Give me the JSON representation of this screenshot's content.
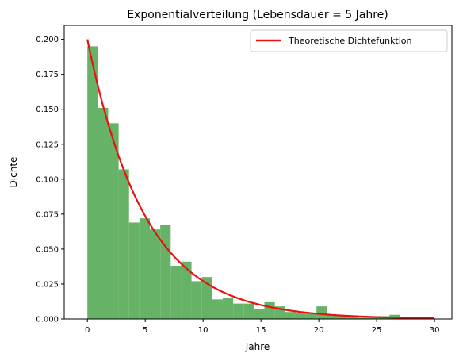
{
  "chart_data": {
    "type": "bar",
    "title": "Exponentialverteilung (Lebensdauer = 5 Jahre)",
    "xlabel": "Jahre",
    "ylabel": "Dichte",
    "xlim": [
      -2,
      31.5
    ],
    "ylim": [
      0,
      0.21
    ],
    "x_ticks": [
      0,
      5,
      10,
      15,
      20,
      25,
      30
    ],
    "y_ticks": [
      0.0,
      0.025,
      0.05,
      0.075,
      0.1,
      0.125,
      0.15,
      0.175,
      0.2
    ],
    "grid": false,
    "legend": {
      "position": "top-right",
      "entries": [
        "Theoretische Dichtefunktion"
      ]
    },
    "histogram": {
      "color": "#66b266",
      "bin_width": 0.9,
      "bin_start": 0,
      "values": [
        0.195,
        0.151,
        0.14,
        0.107,
        0.069,
        0.072,
        0.064,
        0.067,
        0.038,
        0.041,
        0.027,
        0.03,
        0.014,
        0.015,
        0.011,
        0.011,
        0.007,
        0.012,
        0.009,
        0.005,
        0.004,
        0.004,
        0.009,
        0.003,
        0.002,
        0.002,
        0.001,
        0.002,
        0.002,
        0.003,
        0.0,
        0.001,
        0.0
      ]
    },
    "series": [
      {
        "name": "Theoretische Dichtefunktion",
        "type": "line",
        "color": "#e8120f",
        "function": "exponential",
        "rate": 0.2,
        "x_range": [
          0,
          30
        ]
      }
    ]
  }
}
